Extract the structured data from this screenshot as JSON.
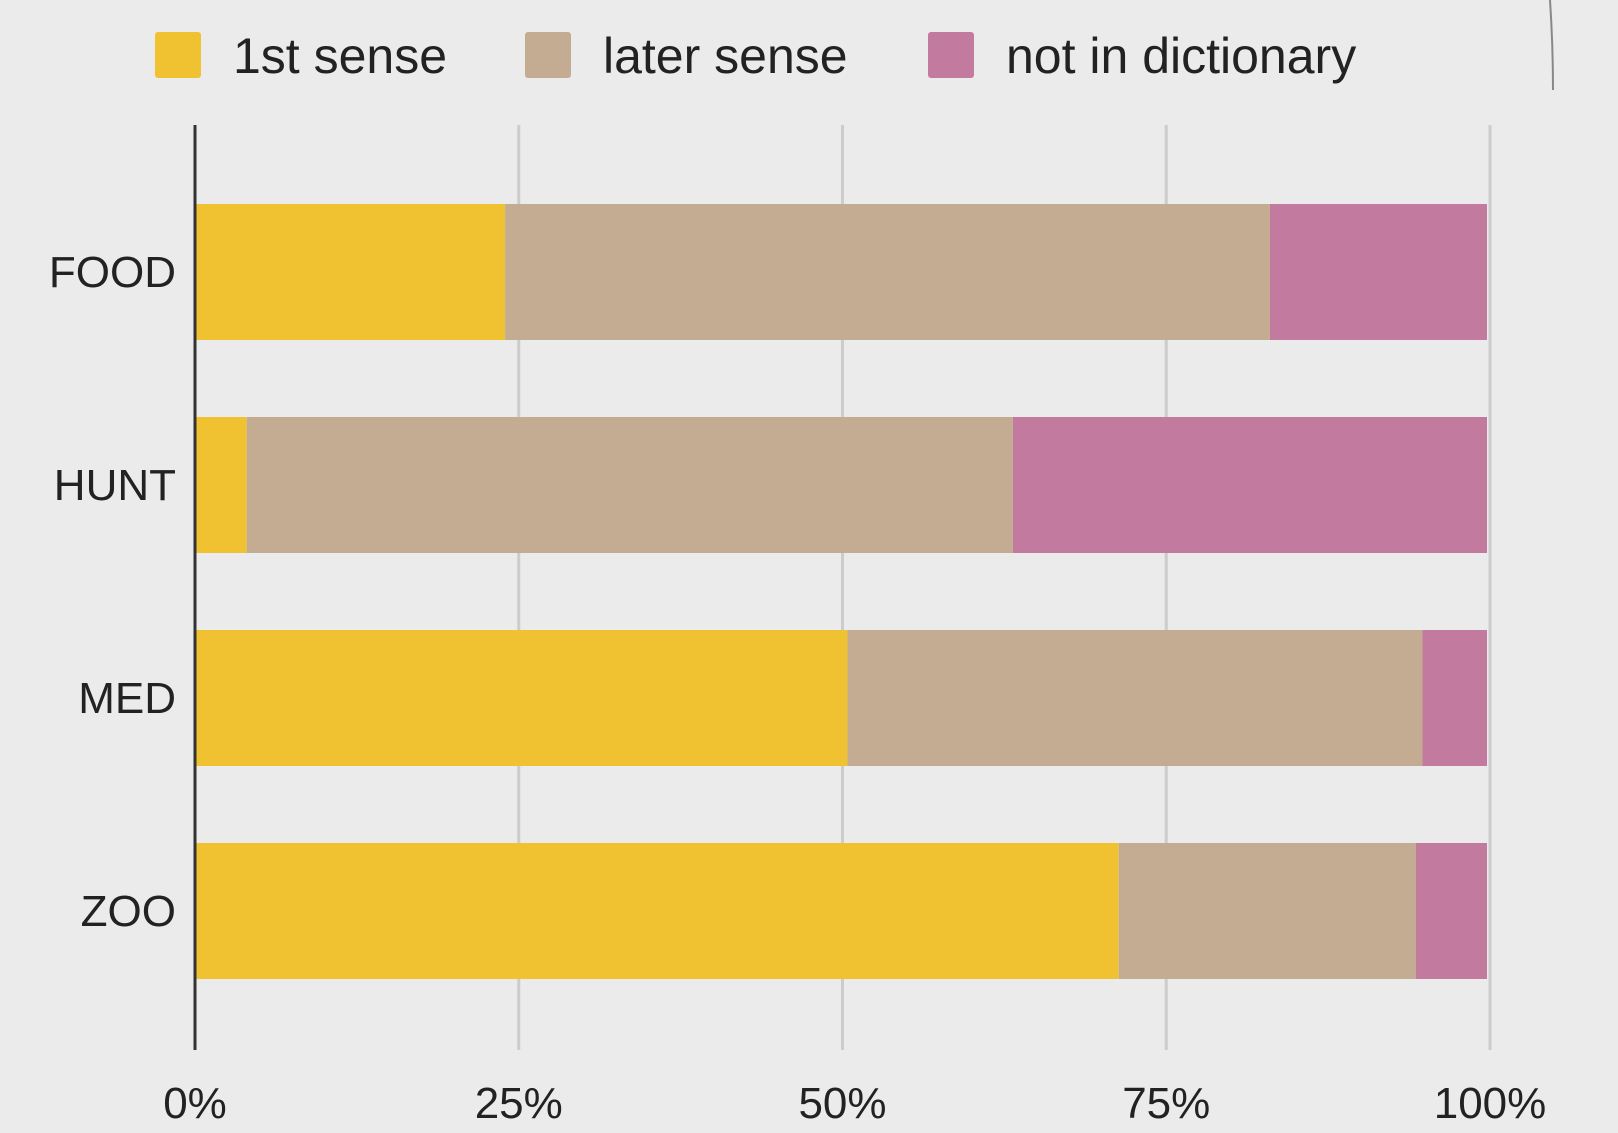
{
  "chart_data": {
    "type": "bar",
    "orientation": "horizontal",
    "stacked": true,
    "categories": [
      "FOOD",
      "HUNT",
      "MED",
      "ZOO"
    ],
    "series": [
      {
        "name": "1st sense",
        "color": "#f0c232",
        "values": [
          24,
          4,
          50.5,
          71.5
        ]
      },
      {
        "name": "later sense",
        "color": "#c4ac93",
        "values": [
          59.2,
          59.3,
          44.5,
          23
        ]
      },
      {
        "name": "not in dictionary",
        "color": "#c27b9f",
        "values": [
          16.8,
          36.7,
          5,
          5.5
        ]
      }
    ],
    "xlim": [
      0,
      100
    ],
    "x_ticks": [
      "0%",
      "25%",
      "50%",
      "75%",
      "100%"
    ],
    "x_tick_values": [
      0,
      25,
      50,
      75,
      100
    ],
    "grid": true,
    "legend_position": "top",
    "axis_line_color": "#333333",
    "grid_color": "#cccccc",
    "background": "#ebebeb"
  }
}
